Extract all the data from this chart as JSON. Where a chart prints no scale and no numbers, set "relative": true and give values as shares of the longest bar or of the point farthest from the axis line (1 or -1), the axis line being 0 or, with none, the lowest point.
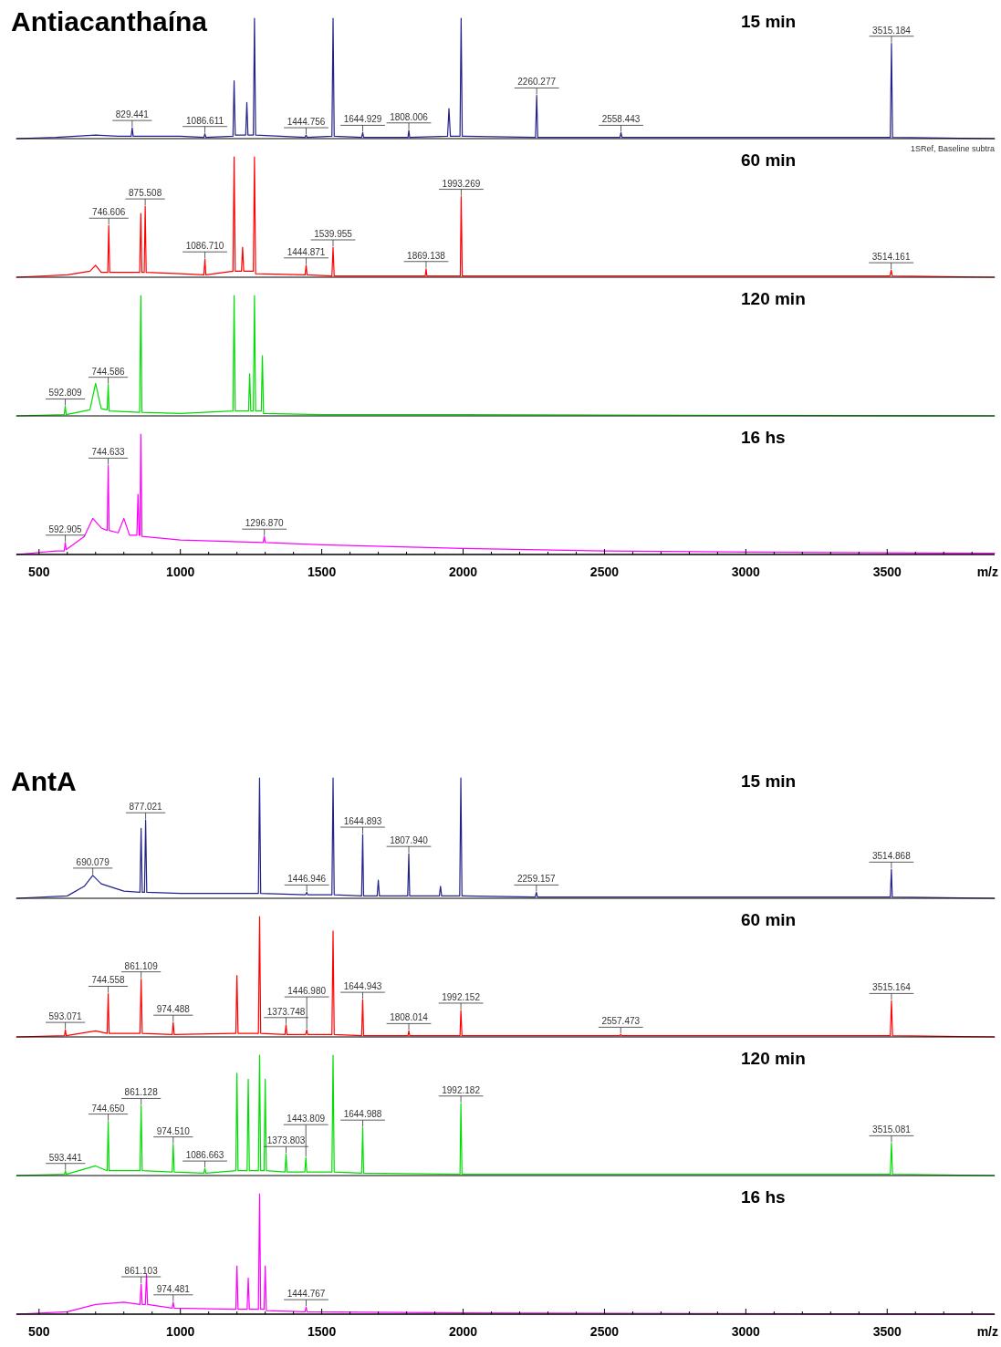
{
  "chart_data": [
    {
      "type": "line",
      "relative": true,
      "title": "Antiacanthaína",
      "subtitle": "15 min",
      "color": "#22228a",
      "xlim": [
        420,
        3880
      ],
      "tick_labels": false,
      "x": [
        420,
        560,
        700,
        780,
        826,
        829.441,
        833,
        1000,
        1083,
        1086.611,
        1090,
        1186,
        1190,
        1194,
        1231,
        1235,
        1239,
        1258,
        1262,
        1266,
        1441,
        1444.756,
        1448,
        1536,
        1540,
        1544,
        1641,
        1644.929,
        1648,
        1805,
        1808.006,
        1811,
        1945,
        1950,
        1955,
        1989,
        1993,
        1997,
        2256,
        2260.277,
        2264,
        2555,
        2558.443,
        2562,
        3511,
        3515.184,
        3519,
        3880
      ],
      "values": [
        0,
        0.01,
        0.03,
        0.02,
        0.02,
        0.09,
        0.02,
        0.02,
        0.01,
        0.04,
        0.01,
        0.02,
        0.48,
        0.03,
        0.03,
        0.3,
        0.03,
        0.03,
        1,
        0.03,
        0.01,
        0.03,
        0.01,
        0.02,
        1,
        0.02,
        0.01,
        0.05,
        0.01,
        0.01,
        0.07,
        0.01,
        0.02,
        0.25,
        0.02,
        0.02,
        1,
        0.02,
        0.01,
        0.36,
        0.01,
        0.01,
        0.05,
        0.01,
        0.01,
        0.79,
        0.01,
        0
      ],
      "annotations": [
        {
          "text": "829.441",
          "x": 829.441,
          "y": 0.09
        },
        {
          "text": "1086.611",
          "x": 1086.611,
          "y": 0.04
        },
        {
          "text": "1444.756",
          "x": 1444.756,
          "y": 0.03
        },
        {
          "text": "1644.929",
          "x": 1644.929,
          "y": 0.05
        },
        {
          "text": "1808.006",
          "x": 1808.006,
          "y": 0.07
        },
        {
          "text": "2260.277",
          "x": 2260.277,
          "y": 0.36
        },
        {
          "text": "2558.443",
          "x": 2558.443,
          "y": 0.05
        },
        {
          "text": "3515.184",
          "x": 3515.184,
          "y": 0.79
        },
        "1SRef, Baseline subtra"
      ]
    },
    {
      "type": "line",
      "relative": true,
      "subtitle": "60 min",
      "color": "#ff0000",
      "xlim": [
        420,
        3880
      ],
      "tick_labels": false,
      "x": [
        420,
        600,
        680,
        700,
        720,
        743,
        746.606,
        750,
        856,
        860,
        864,
        872,
        875.508,
        879,
        1000,
        1083,
        1086.71,
        1090,
        1186,
        1190,
        1194,
        1216,
        1220,
        1224,
        1258,
        1262,
        1266,
        1441,
        1444.871,
        1448,
        1536,
        1539.955,
        1544,
        1866,
        1869.138,
        1872,
        1990,
        1993.269,
        1997,
        3510,
        3514.161,
        3518,
        3880
      ],
      "values": [
        0,
        0.02,
        0.05,
        0.1,
        0.04,
        0.04,
        0.43,
        0.04,
        0.04,
        0.53,
        0.04,
        0.04,
        0.59,
        0.04,
        0.03,
        0.02,
        0.15,
        0.02,
        0.05,
        1,
        0.05,
        0.05,
        0.25,
        0.05,
        0.05,
        1,
        0.03,
        0.02,
        0.1,
        0.02,
        0.01,
        0.25,
        0.01,
        0.01,
        0.07,
        0.01,
        0.01,
        0.67,
        0.01,
        0.01,
        0.06,
        0.01,
        0
      ],
      "annotations": [
        {
          "text": "746.606",
          "x": 746.606,
          "y": 0.43
        },
        {
          "text": "875.508",
          "x": 875.508,
          "y": 0.59
        },
        {
          "text": "1086.710",
          "x": 1086.71,
          "y": 0.15
        },
        {
          "text": "1444.871",
          "x": 1444.871,
          "y": 0.1
        },
        {
          "text": "1539.955",
          "x": 1539.955,
          "y": 0.25
        },
        {
          "text": "1869.138",
          "x": 1869.138,
          "y": 0.07
        },
        {
          "text": "1993.269",
          "x": 1993.269,
          "y": 0.67
        },
        {
          "text": "3514.161",
          "x": 3514.161,
          "y": 0.06
        }
      ]
    },
    {
      "type": "line",
      "relative": true,
      "subtitle": "120 min",
      "color": "#00dd00",
      "xlim": [
        420,
        3880
      ],
      "tick_labels": false,
      "x": [
        420,
        589,
        592.809,
        596,
        680,
        700,
        720,
        741,
        744.586,
        748,
        856,
        860,
        864,
        1000,
        1186,
        1190,
        1194,
        1241,
        1245,
        1249,
        1258,
        1262,
        1266,
        1286,
        1290,
        1294,
        1500,
        2000,
        3880
      ],
      "values": [
        0,
        0.01,
        0.08,
        0.01,
        0.05,
        0.27,
        0.06,
        0.05,
        0.26,
        0.04,
        0.03,
        1,
        0.03,
        0.02,
        0.04,
        1,
        0.04,
        0.04,
        0.35,
        0.04,
        0.04,
        1,
        0.04,
        0.04,
        0.5,
        0.02,
        0.01,
        0.01,
        0
      ],
      "annotations": [
        {
          "text": "592.809",
          "x": 592.809,
          "y": 0.08
        },
        {
          "text": "744.586",
          "x": 744.586,
          "y": 0.26
        }
      ]
    },
    {
      "type": "line",
      "relative": true,
      "subtitle": "16 hs",
      "color": "#ff00ff",
      "xlim": [
        420,
        3880
      ],
      "tick_labels": "x",
      "xlabel": "m/z",
      "xticks": [
        500,
        {
          "value": 600,
          "label": null
        },
        {
          "value": 700,
          "label": null
        },
        {
          "value": 800,
          "label": null
        },
        {
          "value": 900,
          "label": null
        },
        1000,
        {
          "value": 1100,
          "label": null
        },
        {
          "value": 1200,
          "label": null
        },
        {
          "value": 1300,
          "label": null
        },
        {
          "value": 1400,
          "label": null
        },
        1500,
        {
          "value": 1600,
          "label": null
        },
        {
          "value": 1700,
          "label": null
        },
        {
          "value": 1800,
          "label": null
        },
        {
          "value": 1900,
          "label": null
        },
        2000,
        {
          "value": 2100,
          "label": null
        },
        {
          "value": 2200,
          "label": null
        },
        {
          "value": 2300,
          "label": null
        },
        {
          "value": 2400,
          "label": null
        },
        2500,
        {
          "value": 2600,
          "label": null
        },
        {
          "value": 2700,
          "label": null
        },
        {
          "value": 2800,
          "label": null
        },
        {
          "value": 2900,
          "label": null
        },
        3000,
        {
          "value": 3100,
          "label": null
        },
        {
          "value": 3200,
          "label": null
        },
        {
          "value": 3300,
          "label": null
        },
        {
          "value": 3400,
          "label": null
        },
        3500,
        {
          "value": 3600,
          "label": null
        },
        {
          "value": 3700,
          "label": null
        },
        {
          "value": 3800,
          "label": null
        }
      ],
      "x": [
        420,
        560,
        589,
        592.905,
        596,
        660,
        690,
        720,
        741,
        744.633,
        748,
        780,
        800,
        820,
        846,
        850,
        854,
        857,
        860,
        864,
        1000,
        1293,
        1296.87,
        1300,
        1500,
        2000,
        2500,
        3000,
        3880
      ],
      "values": [
        0,
        0.03,
        0.03,
        0.1,
        0.04,
        0.15,
        0.3,
        0.22,
        0.2,
        0.74,
        0.2,
        0.18,
        0.3,
        0.16,
        0.16,
        0.5,
        0.16,
        0.16,
        1,
        0.15,
        0.12,
        0.1,
        0.15,
        0.1,
        0.08,
        0.05,
        0.03,
        0.02,
        0.01
      ],
      "annotations": [
        {
          "text": "592.905",
          "x": 592.905,
          "y": 0.1
        },
        {
          "text": "744.633",
          "x": 744.633,
          "y": 0.74
        },
        {
          "text": "1296.870",
          "x": 1296.87,
          "y": 0.15
        }
      ]
    },
    {
      "type": "line",
      "relative": true,
      "title": "AntA",
      "subtitle": "15 min",
      "color": "#22228a",
      "xlim": [
        420,
        3880
      ],
      "tick_labels": false,
      "x": [
        420,
        600,
        660,
        690.079,
        720,
        800,
        857,
        861,
        865,
        873,
        877.021,
        881,
        1000,
        1276,
        1280,
        1284,
        1443,
        1446.946,
        1450,
        1536,
        1540,
        1544,
        1641,
        1644.893,
        1648,
        1696,
        1700,
        1704,
        1804,
        1807.94,
        1811,
        1916,
        1920,
        1924,
        1988,
        1992,
        1996,
        2255,
        2259.157,
        2263,
        3511,
        3514.868,
        3518,
        3880
      ],
      "values": [
        0,
        0.02,
        0.1,
        0.19,
        0.12,
        0.06,
        0.05,
        0.58,
        0.05,
        0.05,
        0.65,
        0.05,
        0.04,
        0.04,
        1,
        0.04,
        0.03,
        0.05,
        0.03,
        0.03,
        1,
        0.03,
        0.02,
        0.53,
        0.02,
        0.02,
        0.15,
        0.02,
        0.02,
        0.37,
        0.02,
        0.02,
        0.1,
        0.02,
        0.02,
        1,
        0.02,
        0.01,
        0.05,
        0.01,
        0.01,
        0.24,
        0.01,
        0
      ],
      "annotations": [
        {
          "text": "690.079",
          "x": 690.079,
          "y": 0.19
        },
        {
          "text": "877.021",
          "x": 877.021,
          "y": 0.65
        },
        {
          "text": "1446.946",
          "x": 1446.946,
          "y": 0.05
        },
        {
          "text": "1644.893",
          "x": 1644.893,
          "y": 0.53
        },
        {
          "text": "1807.940",
          "x": 1807.94,
          "y": 0.37
        },
        {
          "text": "2259.157",
          "x": 2259.157,
          "y": 0.05
        },
        {
          "text": "3514.868",
          "x": 3514.868,
          "y": 0.24
        }
      ]
    },
    {
      "type": "line",
      "relative": true,
      "subtitle": "60 min",
      "color": "#ff0000",
      "xlim": [
        420,
        3880
      ],
      "tick_labels": false,
      "x": [
        420,
        590,
        593.071,
        596,
        700,
        741,
        744.558,
        748,
        857,
        861.109,
        865,
        971,
        974.488,
        978,
        1196,
        1200,
        1204,
        1276,
        1280,
        1284,
        1370,
        1373.748,
        1377,
        1443,
        1446.98,
        1450,
        1536,
        1540,
        1544,
        1641,
        1644.943,
        1648,
        1805,
        1808.014,
        1811,
        1989,
        1992.152,
        1996,
        2554,
        2557.473,
        2561,
        3511,
        3515.164,
        3519,
        3880
      ],
      "values": [
        0,
        0.01,
        0.06,
        0.01,
        0.05,
        0.03,
        0.36,
        0.03,
        0.03,
        0.48,
        0.03,
        0.02,
        0.12,
        0.02,
        0.03,
        0.51,
        0.03,
        0.03,
        1,
        0.03,
        0.02,
        0.1,
        0.02,
        0.02,
        0.06,
        0.02,
        0.02,
        0.88,
        0.02,
        0.01,
        0.31,
        0.01,
        0.01,
        0.05,
        0.01,
        0.01,
        0.22,
        0.01,
        0.01,
        0.02,
        0.01,
        0.01,
        0.3,
        0.01,
        0
      ],
      "annotations": [
        {
          "text": "593.071",
          "x": 593.071,
          "y": 0.06
        },
        {
          "text": "744.558",
          "x": 744.558,
          "y": 0.36
        },
        {
          "text": "861.109",
          "x": 861.109,
          "y": 0.48
        },
        {
          "text": "974.488",
          "x": 974.488,
          "y": 0.12
        },
        {
          "text": "1373.748",
          "x": 1373.748,
          "y": 0.1
        },
        {
          "text": "1446.980",
          "x": 1446.98,
          "y": 0.06
        },
        {
          "text": "1644.943",
          "x": 1644.943,
          "y": 0.31
        },
        {
          "text": "1808.014",
          "x": 1808.014,
          "y": 0.05
        },
        {
          "text": "1992.152",
          "x": 1992.152,
          "y": 0.22
        },
        {
          "text": "2557.473",
          "x": 2557.473,
          "y": 0.02
        },
        {
          "text": "3515.164",
          "x": 3515.164,
          "y": 0.3
        }
      ]
    },
    {
      "type": "line",
      "relative": true,
      "subtitle": "120 min",
      "color": "#00dd00",
      "xlim": [
        420,
        3880
      ],
      "tick_labels": false,
      "x": [
        420,
        590,
        593.441,
        596,
        700,
        741,
        744.65,
        748,
        857,
        861.128,
        865,
        971,
        974.51,
        978,
        1083,
        1086.663,
        1090,
        1196,
        1200,
        1204,
        1236,
        1240,
        1244,
        1276,
        1280,
        1284,
        1296,
        1300,
        1304,
        1370,
        1373.803,
        1377,
        1440,
        1443.809,
        1447,
        1536,
        1540,
        1544,
        1641,
        1644.988,
        1648,
        1989,
        1992.182,
        1996,
        3511,
        3515.081,
        3519,
        3880
      ],
      "values": [
        0,
        0.01,
        0.04,
        0.01,
        0.08,
        0.04,
        0.45,
        0.04,
        0.04,
        0.58,
        0.04,
        0.03,
        0.26,
        0.03,
        0.02,
        0.06,
        0.02,
        0.04,
        0.85,
        0.04,
        0.04,
        0.8,
        0.04,
        0.04,
        1,
        0.04,
        0.04,
        0.8,
        0.04,
        0.03,
        0.18,
        0.03,
        0.03,
        0.15,
        0.03,
        0.03,
        1,
        0.03,
        0.02,
        0.4,
        0.02,
        0.01,
        0.6,
        0.01,
        0.01,
        0.27,
        0.01,
        0
      ],
      "annotations": [
        {
          "text": "593.441",
          "x": 593.441,
          "y": 0.04
        },
        {
          "text": "744.650",
          "x": 744.65,
          "y": 0.45
        },
        {
          "text": "861.128",
          "x": 861.128,
          "y": 0.58
        },
        {
          "text": "974.510",
          "x": 974.51,
          "y": 0.26
        },
        {
          "text": "1086.663",
          "x": 1086.663,
          "y": 0.06
        },
        {
          "text": "1373.803",
          "x": 1373.803,
          "y": 0.18
        },
        {
          "text": "1443.809",
          "x": 1443.809,
          "y": 0.15
        },
        {
          "text": "1644.988",
          "x": 1644.988,
          "y": 0.4
        },
        {
          "text": "1992.182",
          "x": 1992.182,
          "y": 0.6
        },
        {
          "text": "3515.081",
          "x": 3515.081,
          "y": 0.27
        }
      ]
    },
    {
      "type": "line",
      "relative": true,
      "subtitle": "16 hs",
      "color": "#ff00ff",
      "xlim": [
        420,
        3880
      ],
      "tick_labels": "x",
      "xlabel": "m/z",
      "xticks": [
        500,
        {
          "value": 600,
          "label": null
        },
        {
          "value": 700,
          "label": null
        },
        {
          "value": 800,
          "label": null
        },
        {
          "value": 900,
          "label": null
        },
        1000,
        {
          "value": 1100,
          "label": null
        },
        {
          "value": 1200,
          "label": null
        },
        {
          "value": 1300,
          "label": null
        },
        {
          "value": 1400,
          "label": null
        },
        1500,
        {
          "value": 1600,
          "label": null
        },
        {
          "value": 1700,
          "label": null
        },
        {
          "value": 1800,
          "label": null
        },
        {
          "value": 1900,
          "label": null
        },
        2000,
        {
          "value": 2100,
          "label": null
        },
        {
          "value": 2200,
          "label": null
        },
        {
          "value": 2300,
          "label": null
        },
        {
          "value": 2400,
          "label": null
        },
        2500,
        {
          "value": 2600,
          "label": null
        },
        {
          "value": 2700,
          "label": null
        },
        {
          "value": 2800,
          "label": null
        },
        {
          "value": 2900,
          "label": null
        },
        3000,
        {
          "value": 3100,
          "label": null
        },
        {
          "value": 3200,
          "label": null
        },
        {
          "value": 3300,
          "label": null
        },
        {
          "value": 3400,
          "label": null
        },
        3500,
        {
          "value": 3600,
          "label": null
        },
        {
          "value": 3700,
          "label": null
        },
        {
          "value": 3800,
          "label": null
        }
      ],
      "x": [
        420,
        600,
        700,
        800,
        857,
        861.103,
        865,
        876,
        880,
        884,
        971,
        974.481,
        978,
        1196,
        1200,
        1204,
        1236,
        1240,
        1244,
        1276,
        1280,
        1284,
        1296,
        1300,
        1304,
        1441,
        1444.767,
        1448,
        2000,
        3880
      ],
      "values": [
        0,
        0.02,
        0.08,
        0.1,
        0.08,
        0.25,
        0.08,
        0.08,
        0.33,
        0.08,
        0.05,
        0.1,
        0.05,
        0.04,
        0.4,
        0.04,
        0.04,
        0.3,
        0.04,
        0.04,
        1,
        0.04,
        0.04,
        0.4,
        0.03,
        0.02,
        0.06,
        0.02,
        0.01,
        0
      ],
      "annotations": [
        {
          "text": "861.103",
          "x": 861.103,
          "y": 0.25
        },
        {
          "text": "974.481",
          "x": 974.481,
          "y": 0.1
        },
        {
          "text": "1444.767",
          "x": 1444.767,
          "y": 0.06
        }
      ]
    }
  ]
}
